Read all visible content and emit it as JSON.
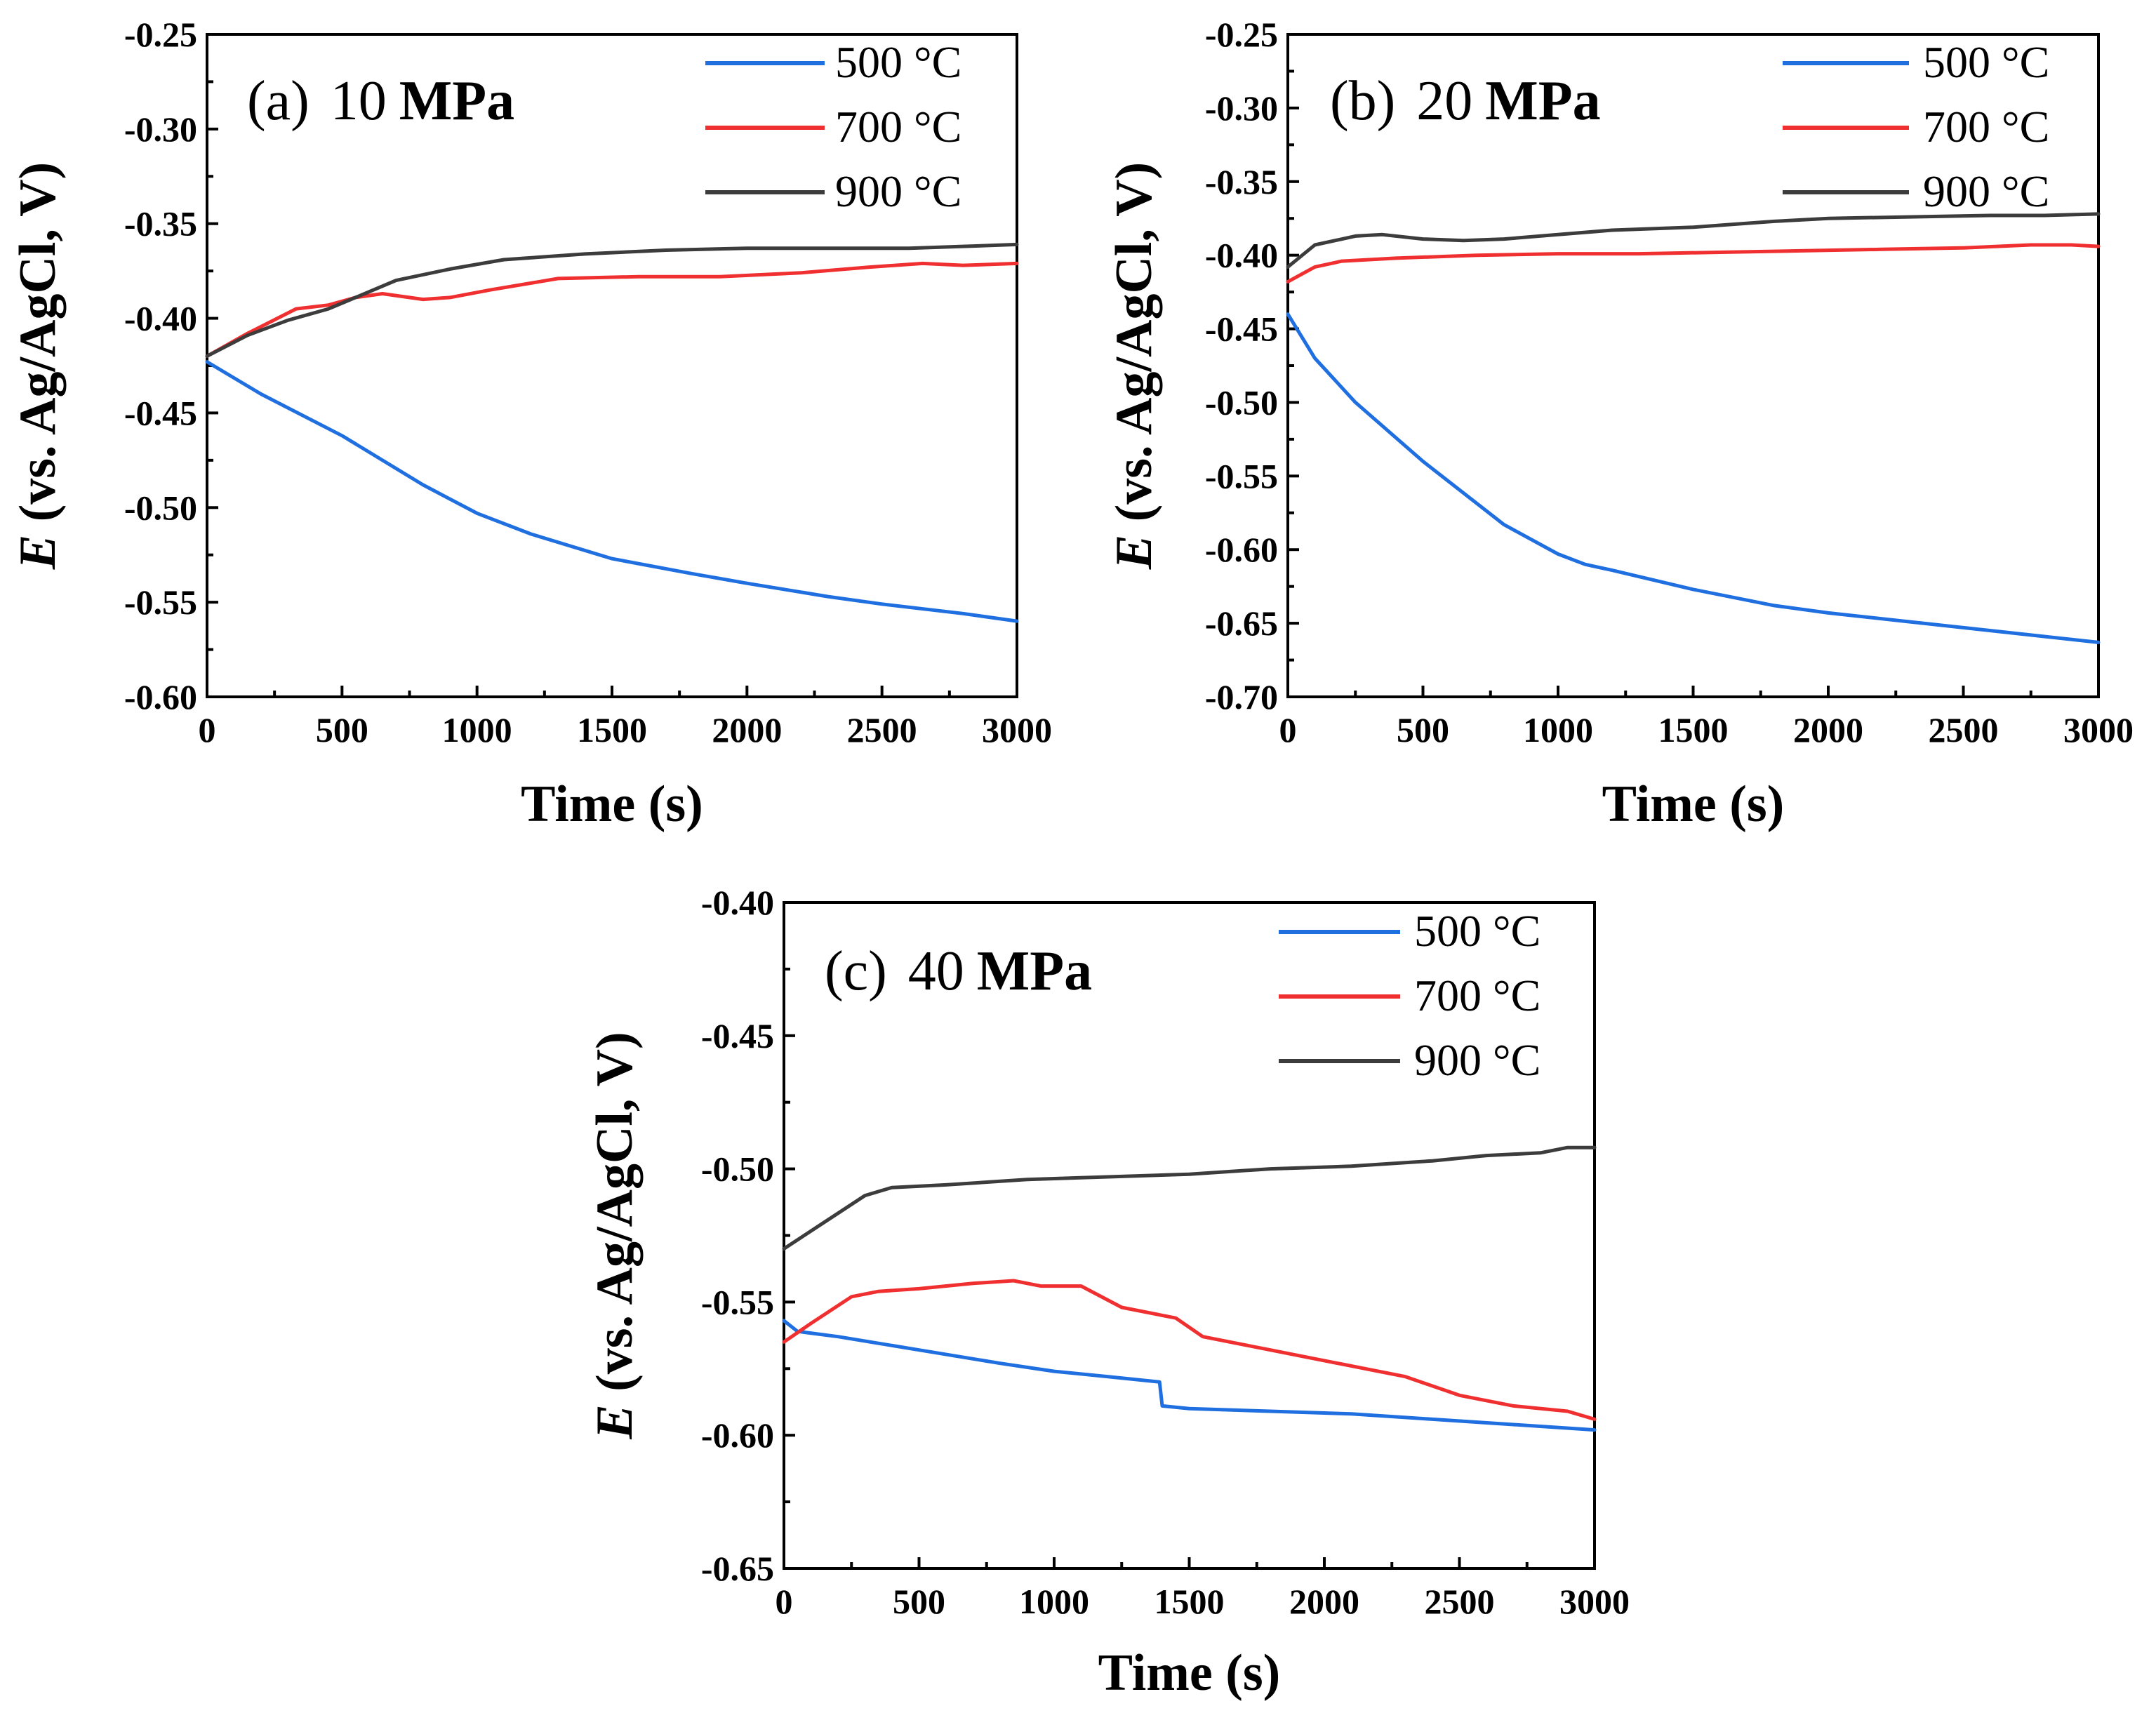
{
  "chart_data": [
    {
      "type": "line",
      "panel": "(a)",
      "title_value": "10",
      "title_unit": "MPa",
      "xlabel": "Time (s)",
      "ylabel_symbol": "E",
      "ylabel_rest": " (vs. Ag/AgCl, V)",
      "xlim": [
        0,
        3000
      ],
      "ylim": [
        -0.6,
        -0.25
      ],
      "x_ticks": [
        0,
        500,
        1000,
        1500,
        2000,
        2500,
        3000
      ],
      "y_ticks": [
        -0.25,
        -0.3,
        -0.35,
        -0.4,
        -0.45,
        -0.5,
        -0.55,
        -0.6
      ],
      "x_tick_labels": [
        "0",
        "500",
        "1000",
        "1500",
        "2000",
        "2500",
        "3000"
      ],
      "y_tick_labels": [
        "-0.25",
        "-0.30",
        "-0.35",
        "-0.40",
        "-0.45",
        "-0.50",
        "-0.55",
        "-0.60"
      ],
      "legend_position": "top-right",
      "series": [
        {
          "name": "500 °C",
          "color": "#1f6fe0",
          "x": [
            0,
            200,
            500,
            800,
            1000,
            1200,
            1500,
            1800,
            2000,
            2300,
            2500,
            2800,
            3000
          ],
          "values": [
            -0.423,
            -0.44,
            -0.462,
            -0.488,
            -0.503,
            -0.514,
            -0.527,
            -0.535,
            -0.54,
            -0.547,
            -0.551,
            -0.556,
            -0.56
          ]
        },
        {
          "name": "700 °C",
          "color": "#f03030",
          "x": [
            0,
            150,
            330,
            450,
            550,
            650,
            800,
            900,
            1050,
            1300,
            1600,
            1900,
            2200,
            2450,
            2650,
            2800,
            3000
          ],
          "values": [
            -0.42,
            -0.408,
            -0.395,
            -0.393,
            -0.389,
            -0.387,
            -0.39,
            -0.389,
            -0.385,
            -0.379,
            -0.378,
            -0.378,
            -0.376,
            -0.373,
            -0.371,
            -0.372,
            -0.371
          ]
        },
        {
          "name": "900 °C",
          "color": "#3c3c3c",
          "x": [
            0,
            150,
            300,
            450,
            600,
            700,
            900,
            1100,
            1400,
            1700,
            2000,
            2300,
            2600,
            2800,
            3000
          ],
          "values": [
            -0.42,
            -0.409,
            -0.401,
            -0.395,
            -0.386,
            -0.38,
            -0.374,
            -0.369,
            -0.366,
            -0.364,
            -0.363,
            -0.363,
            -0.363,
            -0.362,
            -0.361
          ]
        }
      ]
    },
    {
      "type": "line",
      "panel": "(b)",
      "title_value": "20",
      "title_unit": "MPa",
      "xlabel": "Time (s)",
      "ylabel_symbol": "E",
      "ylabel_rest": " (vs. Ag/AgCl, V)",
      "xlim": [
        0,
        3000
      ],
      "ylim": [
        -0.7,
        -0.25
      ],
      "x_ticks": [
        0,
        500,
        1000,
        1500,
        2000,
        2500,
        3000
      ],
      "y_ticks": [
        -0.25,
        -0.3,
        -0.35,
        -0.4,
        -0.45,
        -0.5,
        -0.55,
        -0.6,
        -0.65,
        -0.7
      ],
      "x_tick_labels": [
        "0",
        "500",
        "1000",
        "1500",
        "2000",
        "2500",
        "3000"
      ],
      "y_tick_labels": [
        "-0.25",
        "-0.30",
        "-0.35",
        "-0.40",
        "-0.45",
        "-0.50",
        "-0.55",
        "-0.60",
        "-0.65",
        "-0.70"
      ],
      "legend_position": "top-right",
      "series": [
        {
          "name": "500 °C",
          "color": "#1f6fe0",
          "x": [
            0,
            100,
            250,
            500,
            800,
            1000,
            1100,
            1200,
            1500,
            1800,
            2000,
            2300,
            2500,
            2800,
            3000
          ],
          "values": [
            -0.44,
            -0.47,
            -0.5,
            -0.54,
            -0.583,
            -0.603,
            -0.61,
            -0.614,
            -0.627,
            -0.638,
            -0.643,
            -0.649,
            -0.653,
            -0.659,
            -0.663
          ]
        },
        {
          "name": "700 °C",
          "color": "#f03030",
          "x": [
            0,
            100,
            200,
            400,
            700,
            1000,
            1300,
            1600,
            1900,
            2200,
            2500,
            2750,
            2900,
            3000
          ],
          "values": [
            -0.418,
            -0.408,
            -0.404,
            -0.402,
            -0.4,
            -0.399,
            -0.399,
            -0.398,
            -0.397,
            -0.396,
            -0.395,
            -0.393,
            -0.393,
            -0.394
          ]
        },
        {
          "name": "900 °C",
          "color": "#3c3c3c",
          "x": [
            0,
            100,
            250,
            350,
            500,
            650,
            800,
            1000,
            1200,
            1500,
            1800,
            2000,
            2300,
            2600,
            2800,
            3000
          ],
          "values": [
            -0.408,
            -0.393,
            -0.387,
            -0.386,
            -0.389,
            -0.39,
            -0.389,
            -0.386,
            -0.383,
            -0.381,
            -0.377,
            -0.375,
            -0.374,
            -0.373,
            -0.373,
            -0.372
          ]
        }
      ]
    },
    {
      "type": "line",
      "panel": "(c)",
      "title_value": "40",
      "title_unit": "MPa",
      "xlabel": "Time (s)",
      "ylabel_symbol": "E",
      "ylabel_rest": " (vs. Ag/AgCl, V)",
      "xlim": [
        0,
        3000
      ],
      "ylim": [
        -0.65,
        -0.4
      ],
      "x_ticks": [
        0,
        500,
        1000,
        1500,
        2000,
        2500,
        3000
      ],
      "y_ticks": [
        -0.4,
        -0.45,
        -0.5,
        -0.55,
        -0.6,
        -0.65
      ],
      "x_tick_labels": [
        "0",
        "500",
        "1000",
        "1500",
        "2000",
        "2500",
        "3000"
      ],
      "y_tick_labels": [
        "-0.40",
        "-0.45",
        "-0.50",
        "-0.55",
        "-0.60",
        "-0.65"
      ],
      "legend_position": "top-right",
      "series": [
        {
          "name": "500 °C",
          "color": "#1f6fe0",
          "x": [
            0,
            50,
            200,
            500,
            800,
            1000,
            1200,
            1390,
            1400,
            1500,
            1800,
            2100,
            2400,
            2700,
            3000
          ],
          "values": [
            -0.557,
            -0.561,
            -0.563,
            -0.568,
            -0.573,
            -0.576,
            -0.578,
            -0.58,
            -0.589,
            -0.59,
            -0.591,
            -0.592,
            -0.594,
            -0.596,
            -0.598
          ]
        },
        {
          "name": "700 °C",
          "color": "#f03030",
          "x": [
            0,
            100,
            250,
            350,
            500,
            700,
            850,
            950,
            1100,
            1250,
            1450,
            1550,
            1800,
            2000,
            2300,
            2500,
            2700,
            2900,
            3000
          ],
          "values": [
            -0.565,
            -0.558,
            -0.548,
            -0.546,
            -0.545,
            -0.543,
            -0.542,
            -0.544,
            -0.544,
            -0.552,
            -0.556,
            -0.563,
            -0.568,
            -0.572,
            -0.578,
            -0.585,
            -0.589,
            -0.591,
            -0.594
          ]
        },
        {
          "name": "900 °C",
          "color": "#3c3c3c",
          "x": [
            0,
            150,
            300,
            400,
            600,
            900,
            1200,
            1500,
            1800,
            2100,
            2400,
            2600,
            2800,
            2900,
            3000
          ],
          "values": [
            -0.53,
            -0.52,
            -0.51,
            -0.507,
            -0.506,
            -0.504,
            -0.503,
            -0.502,
            -0.5,
            -0.499,
            -0.497,
            -0.495,
            -0.494,
            -0.492,
            -0.492
          ]
        }
      ]
    }
  ]
}
